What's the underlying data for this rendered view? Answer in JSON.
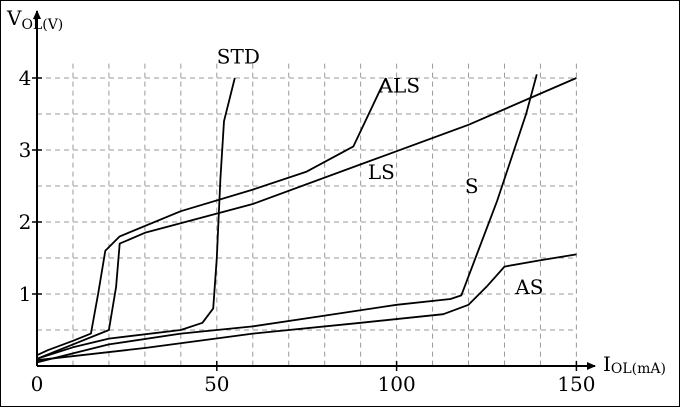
{
  "chart_data": {
    "type": "line",
    "xlabel_main": "I",
    "xlabel_sub": "OL(mA)",
    "ylabel_main": "V",
    "ylabel_sub": "OL(V)",
    "xlim": [
      0,
      150
    ],
    "ylim": [
      0,
      4.2
    ],
    "x_ticks": [
      0,
      50,
      100,
      150
    ],
    "y_ticks": [
      1,
      2,
      3,
      4
    ],
    "grid": true,
    "series": [
      {
        "name": "STD",
        "label_at": [
          50,
          4.2
        ],
        "points": [
          [
            0,
            0.1
          ],
          [
            5,
            0.18
          ],
          [
            10,
            0.26
          ],
          [
            20,
            0.38
          ],
          [
            40,
            0.5
          ],
          [
            46,
            0.6
          ],
          [
            49,
            0.8
          ],
          [
            50,
            1.5
          ],
          [
            51,
            2.6
          ],
          [
            52,
            3.4
          ],
          [
            55,
            4.0
          ]
        ]
      },
      {
        "name": "ALS",
        "label_at": [
          95,
          3.8
        ],
        "points": [
          [
            0,
            0.15
          ],
          [
            3,
            0.22
          ],
          [
            10,
            0.35
          ],
          [
            15,
            0.45
          ],
          [
            17,
            1.0
          ],
          [
            19,
            1.6
          ],
          [
            23,
            1.8
          ],
          [
            40,
            2.15
          ],
          [
            60,
            2.45
          ],
          [
            75,
            2.7
          ],
          [
            88,
            3.05
          ],
          [
            97,
            4.0
          ]
        ]
      },
      {
        "name": "LS",
        "label_at": [
          92,
          2.6
        ],
        "points": [
          [
            0,
            0.1
          ],
          [
            5,
            0.2
          ],
          [
            10,
            0.3
          ],
          [
            20,
            0.5
          ],
          [
            22,
            1.1
          ],
          [
            23,
            1.7
          ],
          [
            30,
            1.85
          ],
          [
            60,
            2.25
          ],
          [
            90,
            2.8
          ],
          [
            120,
            3.35
          ],
          [
            150,
            4.0
          ]
        ]
      },
      {
        "name": "S",
        "label_at": [
          119,
          2.4
        ],
        "points": [
          [
            0,
            0.05
          ],
          [
            20,
            0.3
          ],
          [
            40,
            0.45
          ],
          [
            60,
            0.55
          ],
          [
            80,
            0.7
          ],
          [
            100,
            0.85
          ],
          [
            115,
            0.93
          ],
          [
            118,
            0.98
          ],
          [
            128,
            2.3
          ],
          [
            136,
            3.5
          ],
          [
            139,
            4.05
          ]
        ]
      },
      {
        "name": "AS",
        "label_at": [
          133,
          1.0
        ],
        "points": [
          [
            0,
            0.08
          ],
          [
            30,
            0.25
          ],
          [
            60,
            0.45
          ],
          [
            90,
            0.6
          ],
          [
            113,
            0.72
          ],
          [
            120,
            0.85
          ],
          [
            125,
            1.1
          ],
          [
            130,
            1.38
          ],
          [
            140,
            1.47
          ],
          [
            150,
            1.55
          ]
        ]
      }
    ]
  }
}
